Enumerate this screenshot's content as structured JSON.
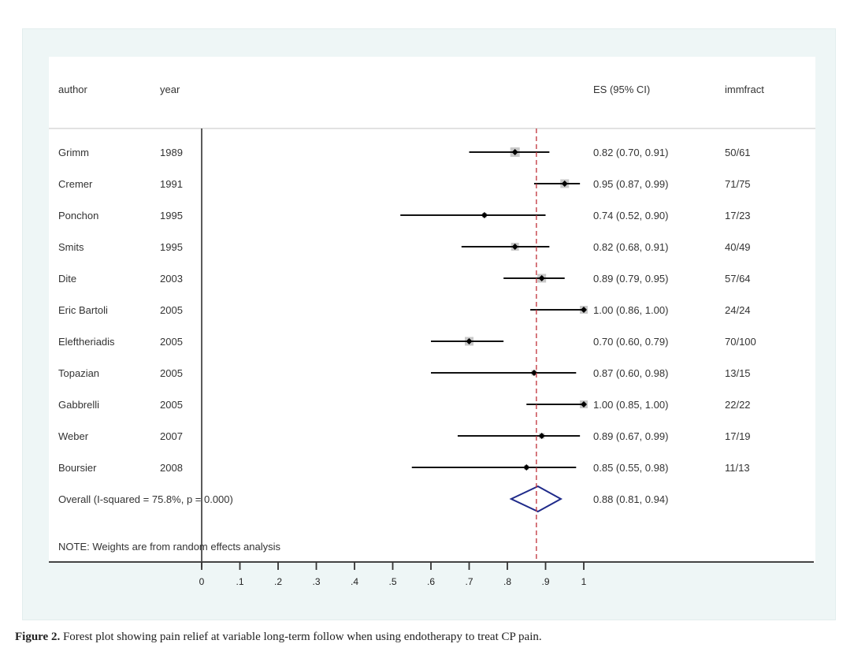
{
  "caption": {
    "label": "Figure 2.",
    "text": " Forest plot showing pain relief at variable long-term follow when using endotherapy to treat CP pain."
  },
  "chart_data": {
    "type": "forest",
    "title": "",
    "columns": {
      "author": "author",
      "year": "year",
      "es": "ES (95% CI)",
      "extra": "immfract"
    },
    "studies": [
      {
        "author": "Grimm",
        "year": "1989",
        "es": 0.82,
        "lo": 0.7,
        "hi": 0.91,
        "es_text": "0.82 (0.70, 0.91)",
        "immfract": "50/61"
      },
      {
        "author": "Cremer",
        "year": "1991",
        "es": 0.95,
        "lo": 0.87,
        "hi": 0.99,
        "es_text": "0.95 (0.87, 0.99)",
        "immfract": "71/75"
      },
      {
        "author": "Ponchon",
        "year": "1995",
        "es": 0.74,
        "lo": 0.52,
        "hi": 0.9,
        "es_text": "0.74 (0.52, 0.90)",
        "immfract": "17/23"
      },
      {
        "author": "Smits",
        "year": "1995",
        "es": 0.82,
        "lo": 0.68,
        "hi": 0.91,
        "es_text": "0.82 (0.68, 0.91)",
        "immfract": "40/49"
      },
      {
        "author": "Dite",
        "year": "2003",
        "es": 0.89,
        "lo": 0.79,
        "hi": 0.95,
        "es_text": "0.89 (0.79, 0.95)",
        "immfract": "57/64"
      },
      {
        "author": "Eric Bartoli",
        "year": "2005",
        "es": 1.0,
        "lo": 0.86,
        "hi": 1.0,
        "es_text": "1.00 (0.86, 1.00)",
        "immfract": "24/24"
      },
      {
        "author": "Eleftheriadis",
        "year": "2005",
        "es": 0.7,
        "lo": 0.6,
        "hi": 0.79,
        "es_text": "0.70 (0.60, 0.79)",
        "immfract": "70/100"
      },
      {
        "author": "Topazian",
        "year": "2005",
        "es": 0.87,
        "lo": 0.6,
        "hi": 0.98,
        "es_text": "0.87 (0.60, 0.98)",
        "immfract": "13/15"
      },
      {
        "author": "Gabbrelli",
        "year": "2005",
        "es": 1.0,
        "lo": 0.85,
        "hi": 1.0,
        "es_text": "1.00 (0.85, 1.00)",
        "immfract": "22/22"
      },
      {
        "author": "Weber",
        "year": "2007",
        "es": 0.89,
        "lo": 0.67,
        "hi": 0.99,
        "es_text": "0.89 (0.67, 0.99)",
        "immfract": "17/19"
      },
      {
        "author": "Boursier",
        "year": "2008",
        "es": 0.85,
        "lo": 0.55,
        "hi": 0.98,
        "es_text": "0.85 (0.55, 0.98)",
        "immfract": "11/13"
      }
    ],
    "overall": {
      "label": "Overall  (I-squared = 75.8%, p = 0.000)",
      "es": 0.88,
      "lo": 0.81,
      "hi": 0.94,
      "es_text": "0.88 (0.81, 0.94)"
    },
    "note": "NOTE: Weights are from random effects analysis",
    "x_ticks": [
      0,
      0.1,
      0.2,
      0.3,
      0.4,
      0.5,
      0.6,
      0.7,
      0.8,
      0.9,
      1
    ],
    "x_tick_labels": [
      "0",
      ".1",
      ".2",
      ".3",
      ".4",
      ".5",
      ".6",
      ".7",
      ".8",
      ".9",
      "1"
    ],
    "xlim": [
      0,
      1
    ],
    "reference_line": 0.876,
    "colors": {
      "ref_line": "#c0303a",
      "diamond": "#1f2a8a",
      "weight_box": "#c8c8c8",
      "ci_line": "#111111"
    }
  }
}
